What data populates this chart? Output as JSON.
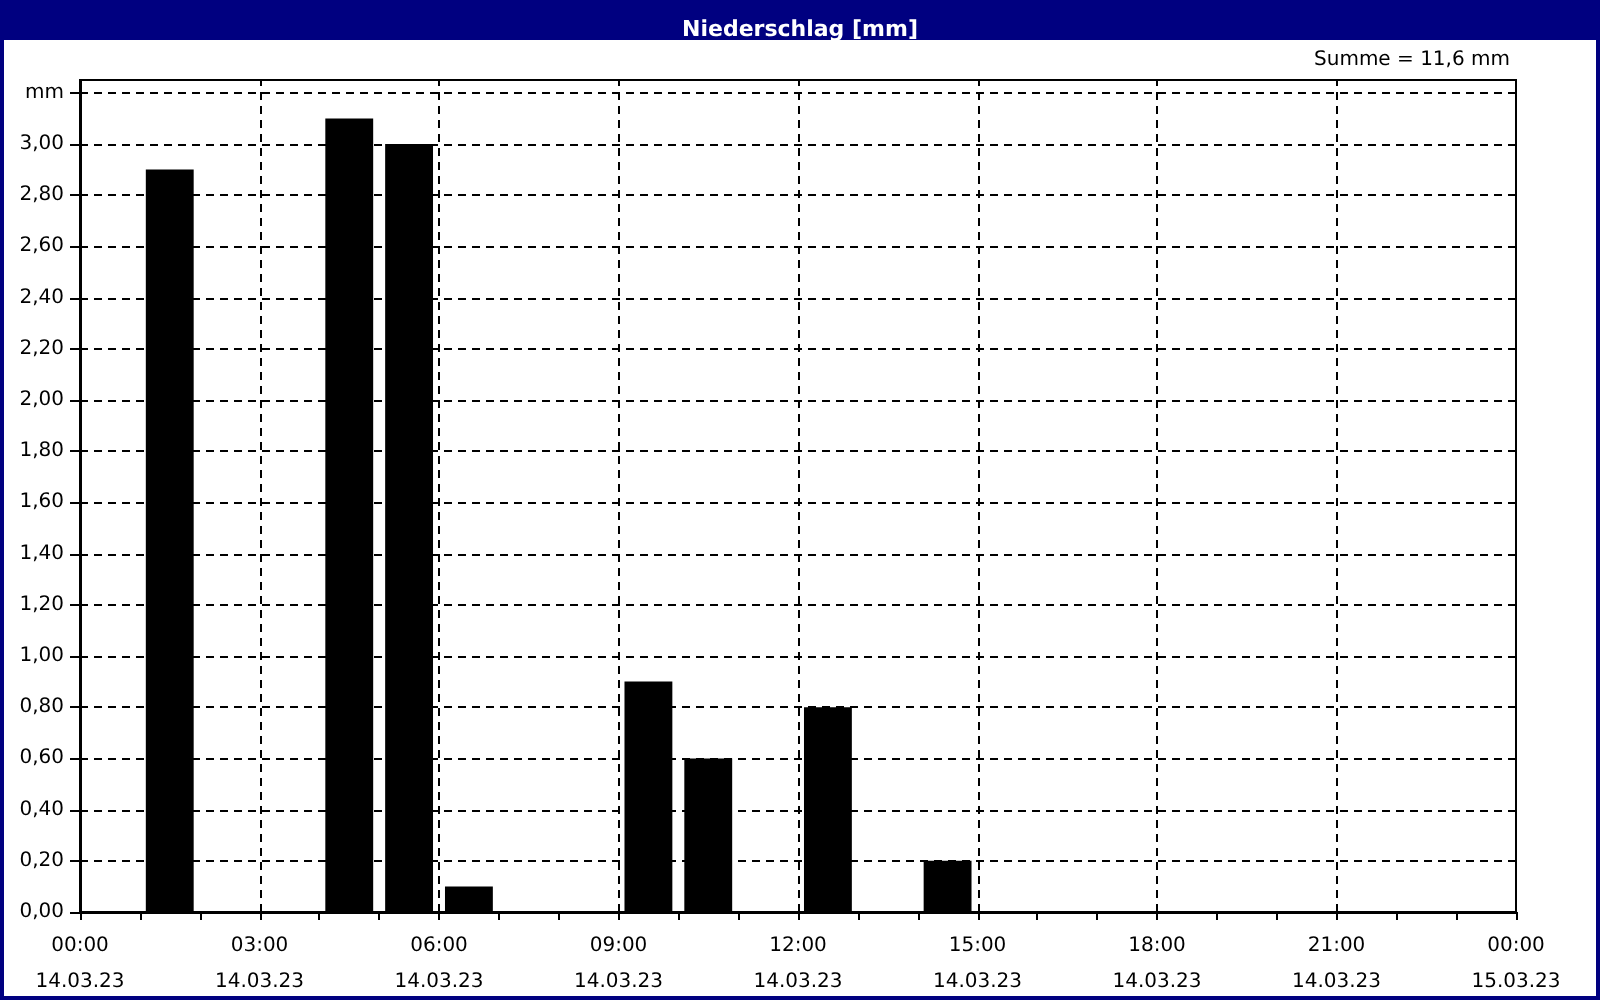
{
  "chart_data": {
    "type": "bar",
    "title": "Niederschlag [mm]",
    "annotations": [
      "Summe = 11,6 mm"
    ],
    "x": [
      "--03-14T01:30",
      "--03-14T04:30",
      "--03-14T05:30",
      "--03-14T06:30",
      "--03-14T09:30",
      "--03-14T10:30",
      "--03-14T12:30",
      "--03-14T14:30"
    ],
    "values": [
      2.9,
      3.1,
      3.0,
      0.1,
      0.9,
      0.6,
      0.8,
      0.2
    ],
    "color": "#000000",
    "xlim": [
      "--03-14T00:00",
      "--03-15T00:00"
    ],
    "xticks": [
      {
        "value": "--03-14T00:00",
        "label": "00:00\n14.03.23"
      },
      {
        "value": "--03-14T01:00",
        "label": null
      },
      {
        "value": "--03-14T02:00",
        "label": null
      },
      {
        "value": "--03-14T03:00",
        "label": "03:00\n14.03.23"
      },
      {
        "value": "--03-14T04:00",
        "label": null
      },
      {
        "value": "--03-14T05:00",
        "label": null
      },
      {
        "value": "--03-14T06:00",
        "label": "06:00\n14.03.23"
      },
      {
        "value": "--03-14T07:00",
        "label": null
      },
      {
        "value": "--03-14T08:00",
        "label": null
      },
      {
        "value": "--03-14T09:00",
        "label": "09:00\n14.03.23"
      },
      {
        "value": "--03-14T10:00",
        "label": null
      },
      {
        "value": "--03-14T11:00",
        "label": null
      },
      {
        "value": "--03-14T12:00",
        "label": "12:00\n14.03.23"
      },
      {
        "value": "--03-14T13:00",
        "label": null
      },
      {
        "value": "--03-14T14:00",
        "label": null
      },
      {
        "value": "--03-14T15:00",
        "label": "15:00\n14.03.23"
      },
      {
        "value": "--03-14T16:00",
        "label": null
      },
      {
        "value": "--03-14T17:00",
        "label": null
      },
      {
        "value": "--03-14T18:00",
        "label": "18:00\n14.03.23"
      },
      {
        "value": "--03-14T19:00",
        "label": null
      },
      {
        "value": "--03-14T20:00",
        "label": null
      },
      {
        "value": "--03-14T21:00",
        "label": "21:00\n14.03.23"
      },
      {
        "value": "--03-14T22:00",
        "label": null
      },
      {
        "value": "--03-14T23:00",
        "label": null
      },
      {
        "value": "--03-15T00:00",
        "label": "00:00\n15.03.23"
      }
    ],
    "ylim": [
      0,
      3.25
    ],
    "yticks": [
      {
        "value": 0,
        "label": "0,00"
      },
      {
        "value": 0.2,
        "label": "0,20"
      },
      {
        "value": 0.4,
        "label": "0,40"
      },
      {
        "value": 0.6,
        "label": "0,60"
      },
      {
        "value": 0.8,
        "label": "0,80"
      },
      {
        "value": 1,
        "label": "1,00"
      },
      {
        "value": 1.2,
        "label": "1,20"
      },
      {
        "value": 1.4,
        "label": "1,40"
      },
      {
        "value": 1.6,
        "label": "1,60"
      },
      {
        "value": 1.8,
        "label": "1,80"
      },
      {
        "value": 2,
        "label": "2,00"
      },
      {
        "value": 2.2,
        "label": "2,20"
      },
      {
        "value": 2.4,
        "label": "2,40"
      },
      {
        "value": 2.6,
        "label": "2,60"
      },
      {
        "value": 2.8,
        "label": "2,80"
      },
      {
        "value": 3,
        "label": "3,00"
      },
      {
        "value": 3.2,
        "label": "mm"
      }
    ],
    "grid": true
  }
}
